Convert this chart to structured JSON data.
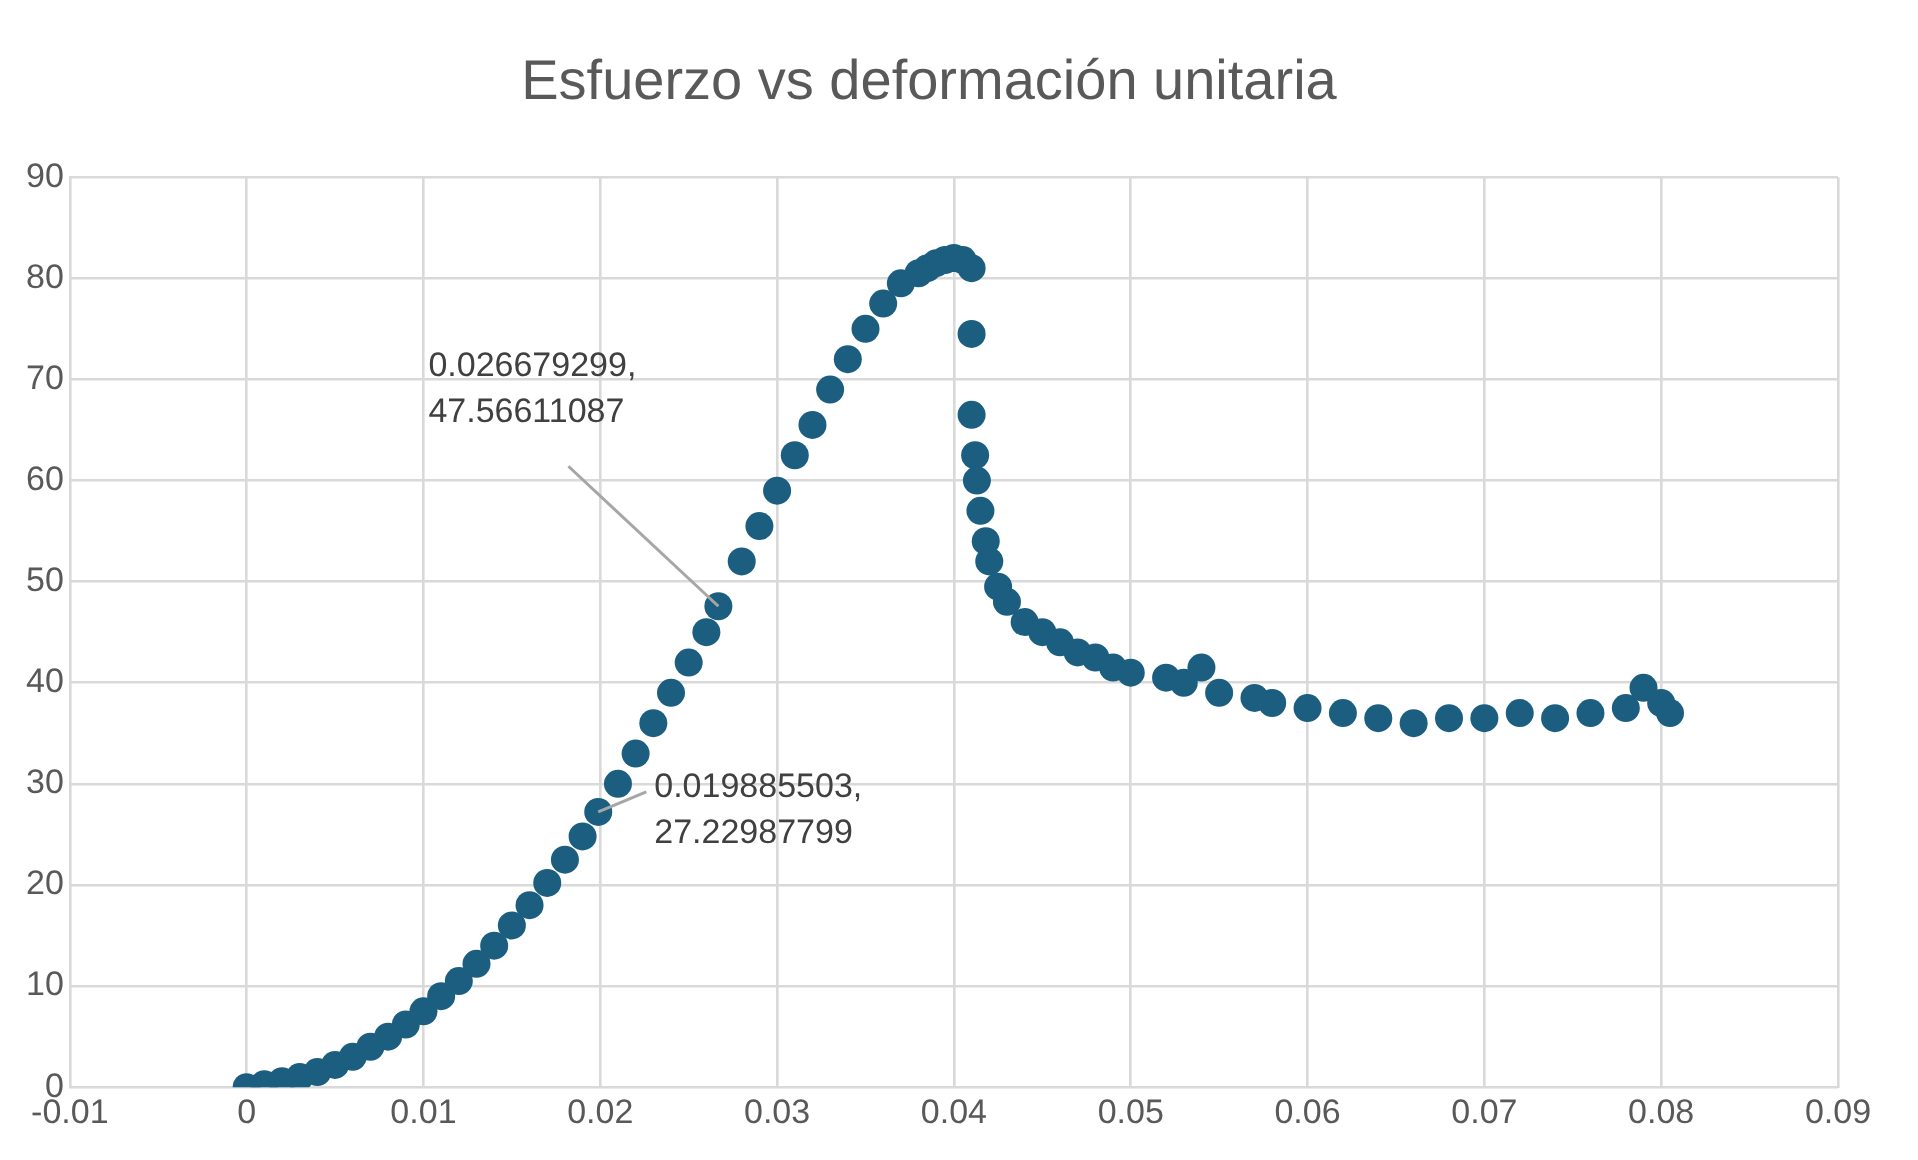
{
  "chart_data": {
    "type": "scatter",
    "title": "Esfuerzo vs deformación unitaria",
    "xlim": [
      -0.01,
      0.09
    ],
    "xticks": [
      -0.01,
      0,
      0.01,
      0.02,
      0.03,
      0.04,
      0.05,
      0.06,
      0.07,
      0.08,
      0.09
    ],
    "ylim": [
      0,
      90
    ],
    "yticks": [
      0,
      10,
      20,
      30,
      40,
      50,
      60,
      70,
      80,
      90
    ],
    "grid": true,
    "marker": "circle",
    "legend": false,
    "annotations": [
      {
        "text": "0.026679299, 47.56611087",
        "x": 0.026679299,
        "y": 47.56611087
      },
      {
        "text": "0.019885503, 27.22987799",
        "x": 0.019885503,
        "y": 27.22987799
      }
    ],
    "series": [
      {
        "color": "#1b5e80",
        "x": [
          0,
          0.001,
          0.002,
          0.003,
          0.004,
          0.005,
          0.006,
          0.007,
          0.008,
          0.009,
          0.01,
          0.011,
          0.012,
          0.013,
          0.014,
          0.015,
          0.016,
          0.017,
          0.018,
          0.019,
          0.019885503,
          0.021,
          0.022,
          0.023,
          0.024,
          0.025,
          0.026,
          0.026679299,
          0.028,
          0.029,
          0.03,
          0.031,
          0.032,
          0.033,
          0.034,
          0.035,
          0.036,
          0.037,
          0.038,
          0.0385,
          0.039,
          0.0395,
          0.04,
          0.0405,
          0.041,
          0.041,
          0.041,
          0.0412,
          0.0413,
          0.0415,
          0.0418,
          0.042,
          0.0425,
          0.043,
          0.044,
          0.045,
          0.046,
          0.047,
          0.048,
          0.049,
          0.05,
          0.052,
          0.053,
          0.054,
          0.055,
          0.057,
          0.058,
          0.06,
          0.062,
          0.064,
          0.066,
          0.068,
          0.07,
          0.072,
          0.074,
          0.076,
          0.078,
          0.079,
          0.08,
          0.0805
        ],
        "values": [
          0,
          0.3,
          0.6,
          1,
          1.5,
          2.2,
          3,
          4,
          5,
          6.2,
          7.5,
          9,
          10.5,
          12.2,
          14,
          16,
          18,
          20.2,
          22.5,
          24.8,
          27.22987799,
          30,
          33,
          36,
          39,
          42,
          45,
          47.56611087,
          52,
          55.5,
          59,
          62.5,
          65.5,
          69,
          72,
          75,
          77.5,
          79.5,
          80.5,
          81,
          81.5,
          81.8,
          82,
          81.8,
          81,
          74.5,
          66.5,
          62.5,
          60,
          57,
          54,
          52,
          49.5,
          48,
          46,
          45,
          44,
          43,
          42.5,
          41.5,
          41,
          40.5,
          40,
          41.5,
          39,
          38.5,
          38,
          37.5,
          37,
          36.5,
          36,
          36.5,
          36.5,
          37,
          36.5,
          37,
          37.5,
          39.5,
          38,
          37
        ]
      }
    ]
  }
}
